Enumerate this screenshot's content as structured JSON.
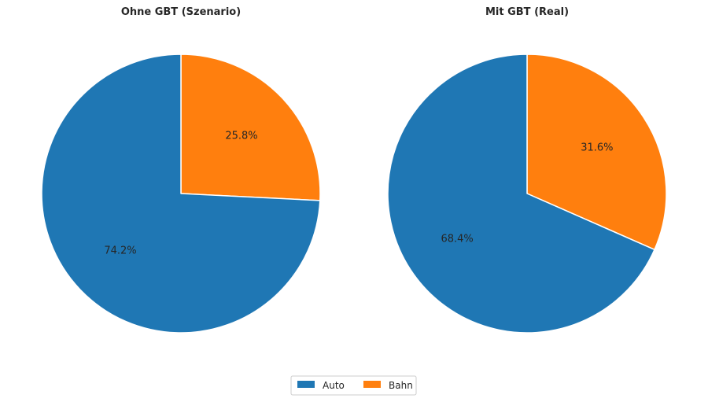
{
  "chart_data": [
    {
      "type": "pie",
      "title": "Ohne GBT (Szenario)",
      "categories": [
        "Auto",
        "Bahn"
      ],
      "values": [
        74.2,
        25.8
      ],
      "labels": [
        "74.2%",
        "25.8%"
      ],
      "start_angle": "top, clockwise from Bahn",
      "colors": [
        "#1f77b4",
        "#ff7f0e"
      ]
    },
    {
      "type": "pie",
      "title": "Mit GBT (Real)",
      "categories": [
        "Auto",
        "Bahn"
      ],
      "values": [
        68.4,
        31.6
      ],
      "labels": [
        "68.4%",
        "31.6%"
      ],
      "start_angle": "top, clockwise from Bahn",
      "colors": [
        "#1f77b4",
        "#ff7f0e"
      ]
    }
  ],
  "legend": {
    "placement": "bottom-center",
    "items": [
      {
        "label": "Auto",
        "color": "#1f77b4"
      },
      {
        "label": "Bahn",
        "color": "#ff7f0e"
      }
    ]
  }
}
